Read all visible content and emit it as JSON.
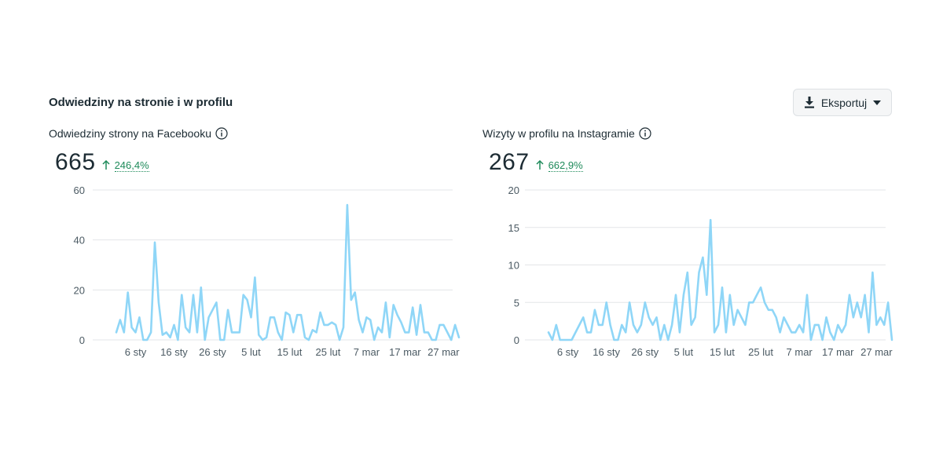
{
  "section": {
    "title": "Odwiedziny na stronie i w profilu"
  },
  "export": {
    "label": "Eksportuj"
  },
  "colors": {
    "line": "#8fd6f7",
    "grid": "#e3e5e8",
    "positive": "#1e8a5a"
  },
  "panels": [
    {
      "title": "Odwiedziny strony na Facebooku",
      "total": "665",
      "change": "246,4%"
    },
    {
      "title": "Wizyty w profilu na Instagramie",
      "total": "267",
      "change": "662,9%"
    }
  ],
  "chart_data": [
    {
      "type": "line",
      "title": "Odwiedziny strony na Facebooku",
      "xlabel": "",
      "ylabel": "",
      "ylim": [
        0,
        60
      ],
      "yticks": [
        0,
        20,
        40,
        60
      ],
      "grid": true,
      "x_tick_labels": [
        "6 sty",
        "16 sty",
        "26 sty",
        "5 lut",
        "15 lut",
        "25 lut",
        "7 mar",
        "17 mar",
        "27 mar"
      ],
      "x_tick_index": [
        5,
        15,
        25,
        35,
        45,
        55,
        65,
        75,
        85
      ],
      "series": [
        {
          "name": "Odwiedziny strony na Facebooku",
          "values": [
            3,
            8,
            3,
            19,
            5,
            3,
            9,
            0,
            0,
            3,
            39,
            15,
            2,
            3,
            1,
            6,
            0,
            18,
            5,
            3,
            18,
            3,
            21,
            0,
            9,
            12,
            15,
            0,
            0,
            12,
            3,
            3,
            3,
            18,
            16,
            9,
            25,
            2,
            0,
            1,
            9,
            9,
            3,
            0,
            11,
            10,
            3,
            10,
            10,
            1,
            0,
            4,
            3,
            11,
            6,
            6,
            7,
            6,
            0,
            5,
            54,
            16,
            19,
            8,
            3,
            9,
            8,
            0,
            5,
            3,
            15,
            1,
            14,
            10,
            7,
            3,
            3,
            13,
            2,
            14,
            3,
            3,
            0,
            0,
            6,
            6,
            3,
            0,
            6,
            1
          ]
        }
      ]
    },
    {
      "type": "line",
      "title": "Wizyty w profilu na Instagramie",
      "xlabel": "",
      "ylabel": "",
      "ylim": [
        0,
        20
      ],
      "yticks": [
        0,
        5,
        10,
        15,
        20
      ],
      "grid": true,
      "x_tick_labels": [
        "6 sty",
        "16 sty",
        "26 sty",
        "5 lut",
        "15 lut",
        "25 lut",
        "7 mar",
        "17 mar",
        "27 mar"
      ],
      "x_tick_index": [
        5,
        15,
        25,
        35,
        45,
        55,
        65,
        75,
        85
      ],
      "series": [
        {
          "name": "Wizyty w profilu na Instagramie",
          "values": [
            1,
            0,
            2,
            0,
            0,
            0,
            0,
            1,
            2,
            3,
            1,
            1,
            4,
            2,
            2,
            5,
            2,
            0,
            0,
            2,
            1,
            5,
            2,
            1,
            2,
            5,
            3,
            2,
            3,
            0,
            2,
            0,
            2,
            6,
            1,
            6,
            9,
            2,
            3,
            9,
            11,
            6,
            16,
            1,
            2,
            7,
            1,
            6,
            2,
            4,
            3,
            2,
            5,
            5,
            6,
            7,
            5,
            4,
            4,
            3,
            1,
            3,
            2,
            1,
            1,
            2,
            1,
            6,
            0,
            2,
            2,
            0,
            3,
            1,
            0,
            2,
            1,
            2,
            6,
            3,
            5,
            3,
            6,
            1,
            9,
            2,
            3,
            2,
            5,
            0
          ]
        }
      ]
    }
  ]
}
